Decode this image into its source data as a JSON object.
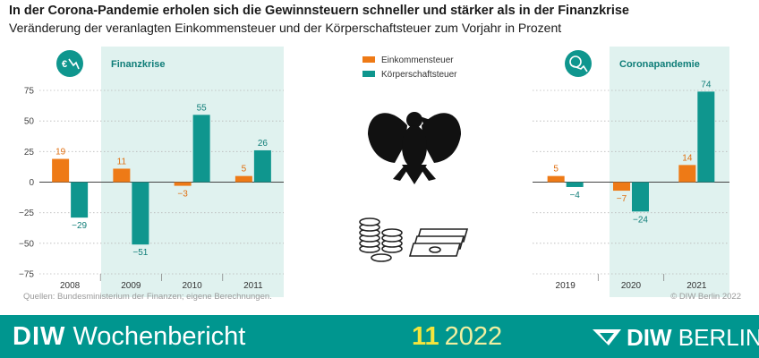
{
  "header": {
    "title": "In der Corona-Pandemie erholen sich die Gewinnsteuern schneller und stärker als in der Finanzkrise",
    "subtitle": "Veränderung der veranlagten Einkommensteuer und der Körperschaftsteuer zum Vorjahr in Prozent"
  },
  "chart_data": {
    "type": "bar",
    "legend": [
      "Einkommensteuer",
      "Körperschaftsteuer"
    ],
    "legend_position": "top-center",
    "colors": {
      "Einkommensteuer": "#ee7a16",
      "Körperschaftsteuer": "#0f968e"
    },
    "ylim": [
      -75,
      75
    ],
    "yticks": [
      "75",
      "50",
      "25",
      "0",
      "−25",
      "−50",
      "−75"
    ],
    "panels": [
      {
        "label": "Finanzkrise",
        "icon": "euro-crash-icon",
        "categories": [
          "2008",
          "2009",
          "2010",
          "2011"
        ],
        "highlight": [
          "2009",
          "2010",
          "2011"
        ],
        "series": [
          {
            "name": "Einkommensteuer",
            "values": [
              19,
              11,
              -3,
              5
            ],
            "labels": [
              "19",
              "11",
              "−3",
              "5"
            ]
          },
          {
            "name": "Körperschaftsteuer",
            "values": [
              -29,
              -51,
              55,
              26
            ],
            "labels": [
              "−29",
              "−51",
              "55",
              "26"
            ]
          }
        ]
      },
      {
        "label": "Coronapandemie",
        "icon": "virus-crash-icon",
        "categories": [
          "2019",
          "2020",
          "2021"
        ],
        "highlight": [
          "2020",
          "2021"
        ],
        "series": [
          {
            "name": "Einkommensteuer",
            "values": [
              5,
              -7,
              14
            ],
            "labels": [
              "5",
              "−7",
              "14"
            ]
          },
          {
            "name": "Körperschaftsteuer",
            "values": [
              -4,
              -24,
              74
            ],
            "labels": [
              "−4",
              "−24",
              "74"
            ]
          }
        ]
      }
    ]
  },
  "footer": {
    "source": "Quellen: Bundesministerium der Finanzen; eigene Berechnungen.",
    "copyright": "© DIW Berlin 2022",
    "brand_bold": "DIW",
    "brand_rest": "Wochenbericht",
    "issue_number": "11",
    "issue_year": "2022",
    "logo_left": "DIW",
    "logo_right": "BERLIN"
  }
}
